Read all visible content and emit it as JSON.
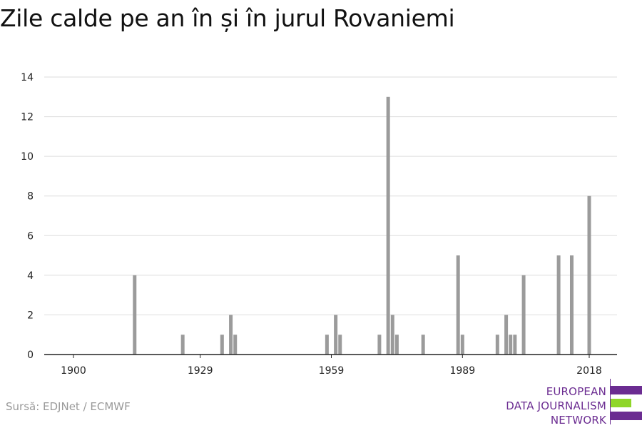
{
  "title": "Zile calde pe an în și în jurul Rovaniemi",
  "source": "Sursă: EDJNet / ECMWF",
  "logo": {
    "lines": [
      "EUROPEAN",
      "DATA JOURNALISM",
      "NETWORK"
    ],
    "colors": {
      "purple": "#6b2c91",
      "green": "#8fd629"
    }
  },
  "colors": {
    "bar": "#9b9b9b",
    "grid": "#dddddd",
    "axis": "#222222"
  },
  "chart_data": {
    "type": "bar",
    "title": "Zile calde pe an în și în jurul Rovaniemi",
    "xlabel": "",
    "ylabel": "",
    "xlim": [
      1900,
      2018
    ],
    "ylim": [
      0,
      14
    ],
    "x_ticks": [
      1900,
      1929,
      1959,
      1989,
      2018
    ],
    "y_ticks": [
      0,
      2,
      4,
      6,
      8,
      10,
      12,
      14
    ],
    "grid": true,
    "x": [
      1914,
      1925,
      1934,
      1936,
      1937,
      1958,
      1960,
      1961,
      1970,
      1972,
      1973,
      1974,
      1980,
      1988,
      1989,
      1997,
      1999,
      2000,
      2001,
      2003,
      2011,
      2014,
      2018
    ],
    "values": [
      4,
      1,
      1,
      2,
      1,
      1,
      2,
      1,
      1,
      13,
      2,
      1,
      1,
      5,
      1,
      1,
      2,
      1,
      1,
      4,
      5,
      5,
      8
    ]
  }
}
